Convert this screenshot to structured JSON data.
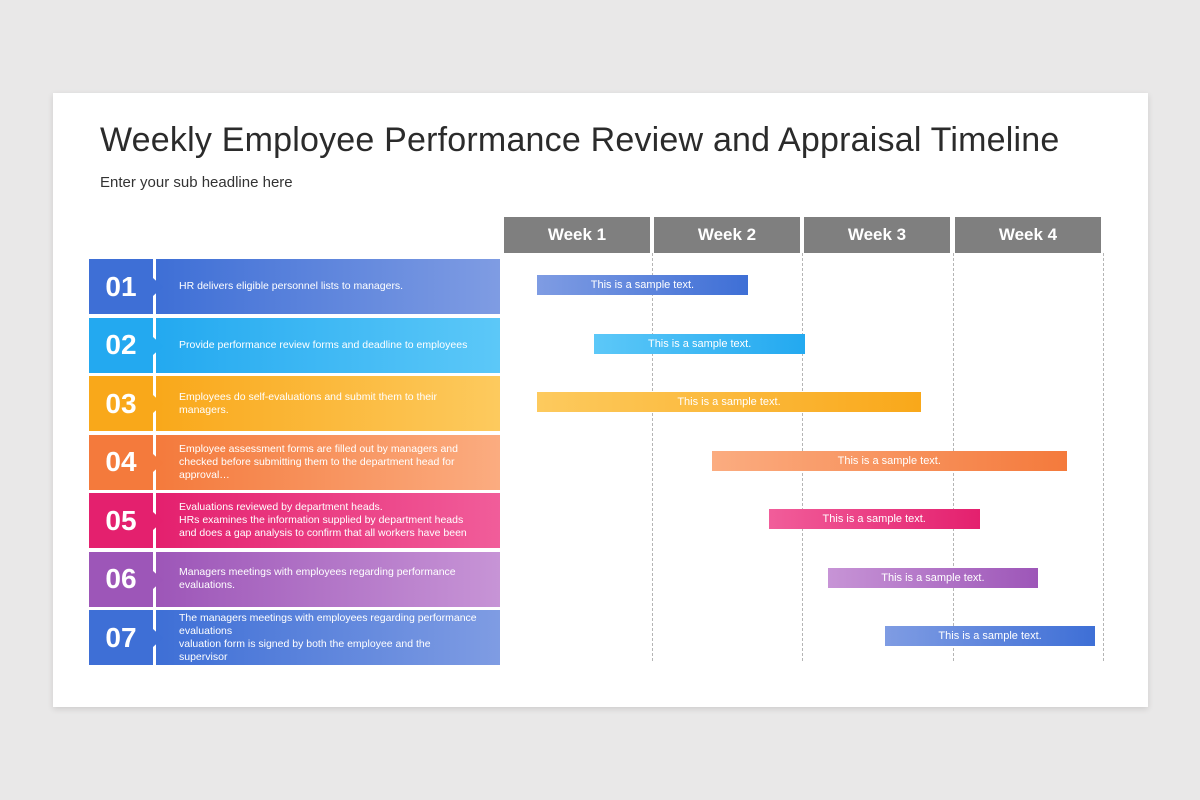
{
  "title": "Weekly Employee Performance Review and Appraisal Timeline",
  "subtitle": "Enter your sub headline here",
  "weeks": [
    "Week 1",
    "Week 2",
    "Week 3",
    "Week 4"
  ],
  "tasks": [
    {
      "num": "01",
      "desc": "HR delivers eligible personnel lists to managers.",
      "bar_label": "This is a sample text.",
      "start_week": 0.22,
      "end_week": 1.62,
      "color_from": "#7f9ce3",
      "color_to": "#3e6fd6"
    },
    {
      "num": "02",
      "desc": "Provide performance review forms and deadline to employees",
      "bar_label": "This is a sample text.",
      "start_week": 0.6,
      "end_week": 2.0,
      "color_from": "#5cc8f8",
      "color_to": "#23a9f0"
    },
    {
      "num": "03",
      "desc": "Employees do self-evaluations and submit them to their\nmanagers.",
      "bar_label": "This is a sample text.",
      "start_week": 0.22,
      "end_week": 2.77,
      "color_from": "#fdca5e",
      "color_to": "#f9a81a"
    },
    {
      "num": "04",
      "desc": "Employee assessment forms are filled out by managers and\nchecked  before submitting them to the department head for\napproval…",
      "bar_label": "This is a sample text.",
      "start_week": 1.38,
      "end_week": 3.74,
      "color_from": "#fbac80",
      "color_to": "#f47a3c"
    },
    {
      "num": "05",
      "desc": "Evaluations reviewed by department heads.\nHRs examines the information supplied by department heads\nand does a gap analysis to confirm that all workers have been",
      "bar_label": "This is a sample text.",
      "start_week": 1.76,
      "end_week": 3.16,
      "color_from": "#f15d9a",
      "color_to": "#e4206e"
    },
    {
      "num": "06",
      "desc": "Managers meetings with employees regarding performance\nevaluations.",
      "bar_label": "This is a sample text.",
      "start_week": 2.15,
      "end_week": 3.55,
      "color_from": "#c794d6",
      "color_to": "#9d56b8"
    },
    {
      "num": "07",
      "desc": "The managers meetings with employees regarding performance\nevaluations\nvaluation form is signed by both the employee and the\nsupervisor",
      "bar_label": "This is a sample text.",
      "start_week": 2.53,
      "end_week": 3.93,
      "color_from": "#7f9ce3",
      "color_to": "#3e6fd6"
    }
  ]
}
